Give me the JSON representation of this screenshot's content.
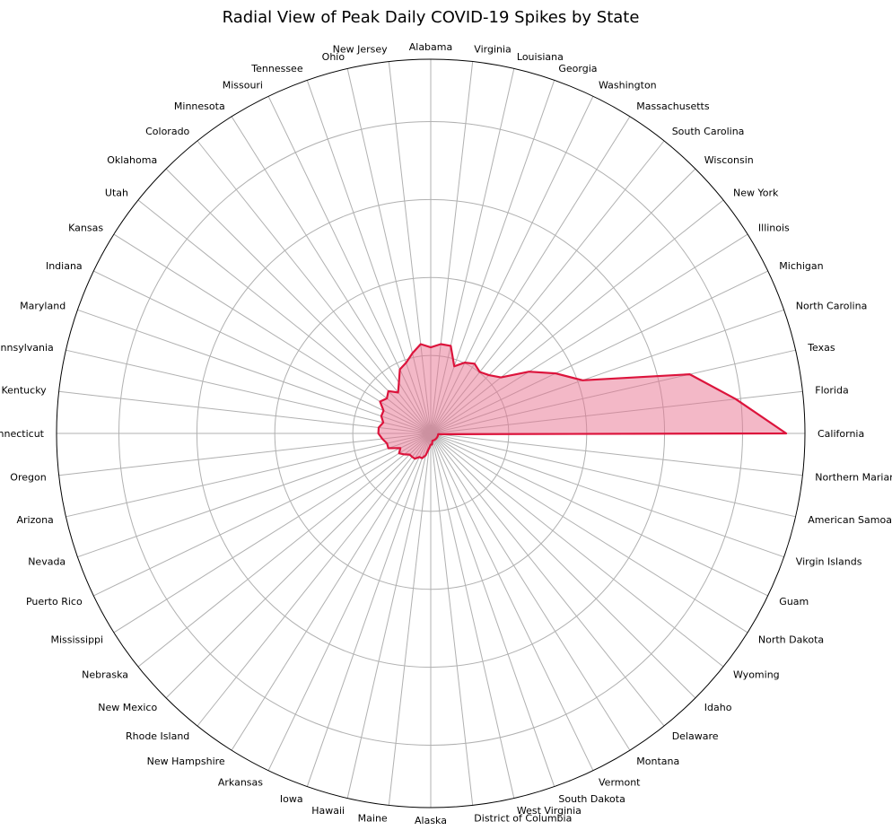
{
  "chart_data": {
    "type": "radar",
    "title": "Radial View of Peak Daily COVID-19 Spikes by State",
    "categories": [
      "California",
      "Florida",
      "Texas",
      "North Carolina",
      "Michigan",
      "Illinois",
      "New York",
      "Wisconsin",
      "South Carolina",
      "Massachusetts",
      "Washington",
      "Georgia",
      "Louisiana",
      "Virginia",
      "Alabama",
      "New Jersey",
      "Ohio",
      "Tennessee",
      "Missouri",
      "Minnesota",
      "Colorado",
      "Oklahoma",
      "Utah",
      "Kansas",
      "Indiana",
      "Maryland",
      "Pennsylvania",
      "Kentucky",
      "Connecticut",
      "Oregon",
      "Arizona",
      "Nevada",
      "Puerto Rico",
      "Mississippi",
      "Nebraska",
      "New Mexico",
      "Rhode Island",
      "New Hampshire",
      "Arkansas",
      "Iowa",
      "Hawaii",
      "Maine",
      "Alaska",
      "District of Columbia",
      "West Virginia",
      "South Dakota",
      "Vermont",
      "Montana",
      "Delaware",
      "Idaho",
      "Wyoming",
      "North Dakota",
      "Guam",
      "Virgin Islands",
      "American Samoa",
      "Northern Mariana Islands"
    ],
    "values": [
      0.95,
      0.82,
      0.71,
      0.43,
      0.37,
      0.31,
      0.24,
      0.22,
      0.21,
      0.22,
      0.21,
      0.19,
      0.24,
      0.24,
      0.23,
      0.24,
      0.22,
      0.2,
      0.19,
      0.16,
      0.14,
      0.16,
      0.15,
      0.16,
      0.14,
      0.14,
      0.13,
      0.14,
      0.14,
      0.13,
      0.12,
      0.12,
      0.09,
      0.1,
      0.09,
      0.08,
      0.08,
      0.08,
      0.07,
      0.07,
      0.06,
      0.04,
      0.03,
      0.03,
      0.02,
      0.02,
      0.02,
      0.02,
      0.02,
      0.02,
      0.02,
      0.02,
      0.02,
      0.02,
      0.02,
      0.02
    ],
    "rlim": [
      0,
      1
    ],
    "grid": true,
    "colors": {
      "line": "#dc143c",
      "fill": "#e8728f",
      "grid": "#b0b0b0"
    }
  }
}
